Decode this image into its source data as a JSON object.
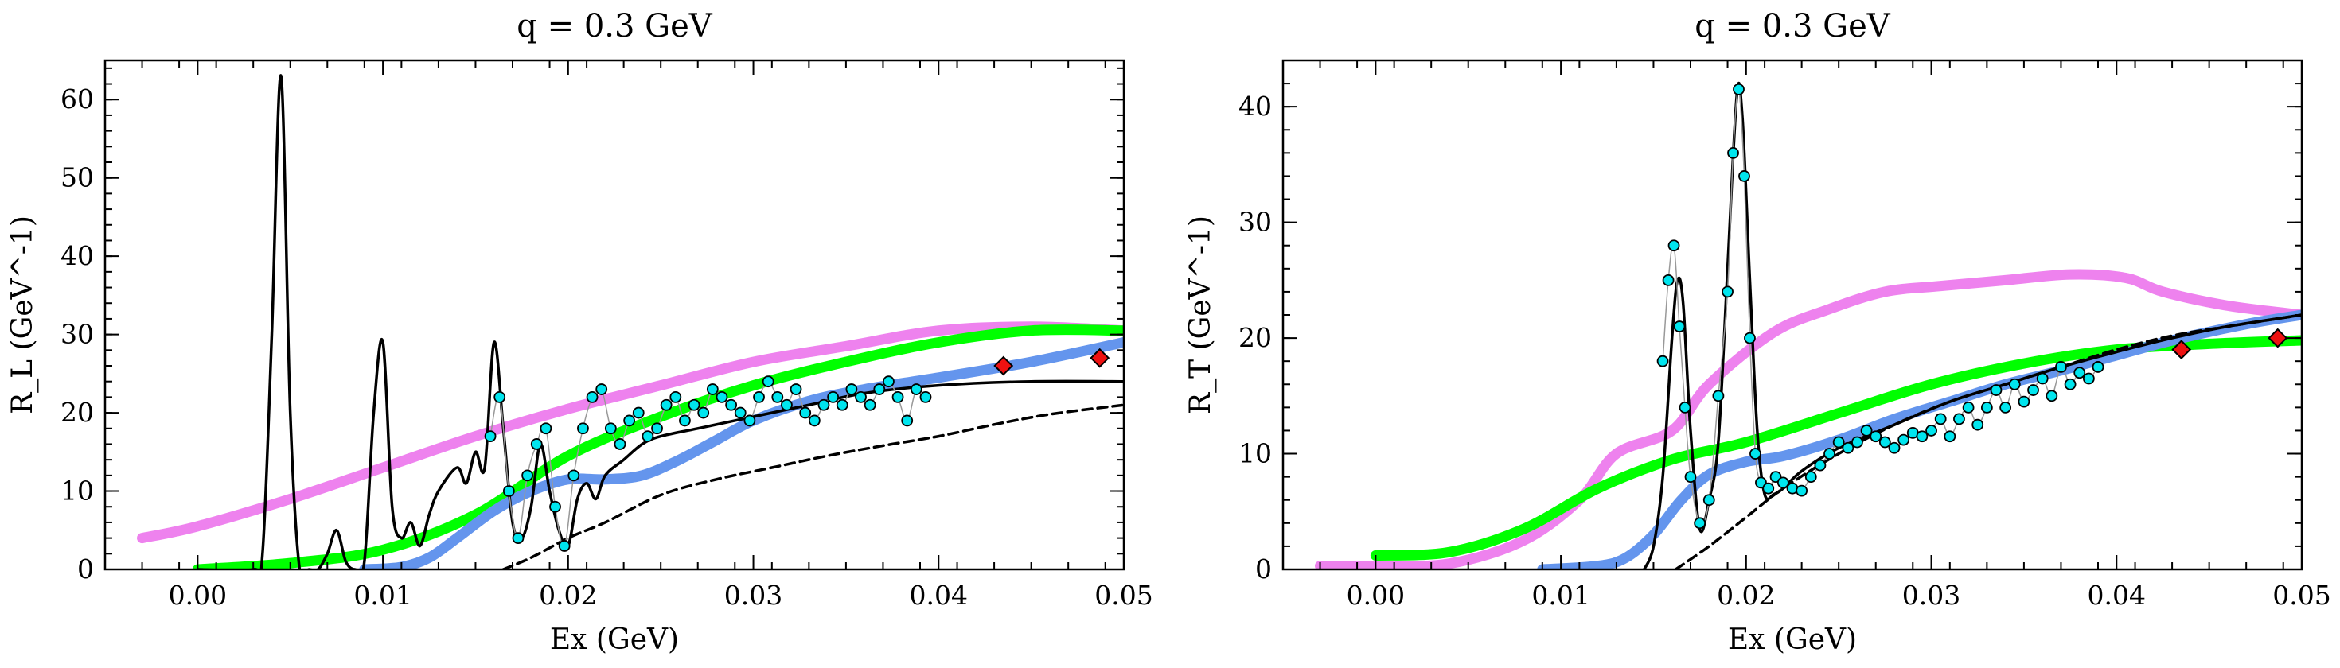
{
  "chart_data": [
    {
      "type": "line",
      "title": "q = 0.3 GeV",
      "xlabel": "Ex (GeV)",
      "ylabel": "R_L (GeV^-1)",
      "xlim": [
        -0.005,
        0.05
      ],
      "ylim": [
        0,
        65
      ],
      "xticks": [
        0.0,
        0.01,
        0.02,
        0.03,
        0.04,
        0.05
      ],
      "xtick_labels": [
        "0.00",
        "0.01",
        "0.02",
        "0.03",
        "0.04",
        "0.05"
      ],
      "yticks": [
        0,
        10,
        20,
        30,
        40,
        50,
        60
      ],
      "ytick_labels": [
        "0",
        "10",
        "20",
        "30",
        "40",
        "50",
        "60"
      ],
      "grid": false,
      "legend": "none",
      "series": [
        {
          "style": "thick",
          "color": "#ee82ee",
          "x": [
            -0.003,
            0.0,
            0.005,
            0.01,
            0.015,
            0.02,
            0.025,
            0.03,
            0.035,
            0.04,
            0.045,
            0.05
          ],
          "y": [
            4,
            5.5,
            9,
            13,
            17,
            20.5,
            23.5,
            26.5,
            28.5,
            30.5,
            31,
            30.5
          ]
        },
        {
          "style": "thick",
          "color": "#00ff00",
          "x": [
            0.0,
            0.005,
            0.01,
            0.015,
            0.02,
            0.025,
            0.03,
            0.035,
            0.04,
            0.045,
            0.05
          ],
          "y": [
            0,
            0.8,
            2.5,
            7,
            14.5,
            19.5,
            23.5,
            26.5,
            29,
            30.5,
            30.5
          ]
        },
        {
          "style": "thick",
          "color": "#6495ed",
          "x": [
            0.009,
            0.011,
            0.0125,
            0.014,
            0.016,
            0.018,
            0.02,
            0.022,
            0.024,
            0.026,
            0.028,
            0.03,
            0.033,
            0.036,
            0.04,
            0.045,
            0.05
          ],
          "y": [
            0,
            0.3,
            1.5,
            4,
            7.5,
            10,
            11.5,
            11.5,
            12,
            14,
            16.5,
            19,
            21.5,
            23,
            24.5,
            26.5,
            29
          ]
        },
        {
          "style": "thin",
          "color": "#000000",
          "x": [
            0.0,
            0.003,
            0.0035,
            0.004,
            0.0045,
            0.005,
            0.0055,
            0.006,
            0.0065,
            0.007,
            0.0075,
            0.008,
            0.0085,
            0.009,
            0.0095,
            0.01,
            0.0105,
            0.011,
            0.0115,
            0.012,
            0.0125,
            0.013,
            0.014,
            0.0145,
            0.015,
            0.0155,
            0.016,
            0.0165,
            0.017,
            0.0175,
            0.018,
            0.0185,
            0.019,
            0.0195,
            0.02,
            0.0205,
            0.021,
            0.0215,
            0.022,
            0.023,
            0.024,
            0.025,
            0.027,
            0.03,
            0.033,
            0.036,
            0.04,
            0.045,
            0.05
          ],
          "y": [
            0,
            0,
            2,
            30,
            63,
            20,
            0,
            0,
            0,
            2,
            5,
            1,
            0,
            1,
            20,
            29,
            8,
            4,
            6,
            3,
            7,
            10,
            13,
            11,
            15,
            13,
            29,
            18,
            6,
            4,
            8,
            16,
            10,
            5,
            3,
            9,
            11,
            9,
            12,
            14,
            16,
            17,
            18,
            19.5,
            21,
            22.5,
            23.5,
            24,
            24
          ]
        },
        {
          "style": "dashed",
          "color": "#000000",
          "x": [
            0.0165,
            0.018,
            0.02,
            0.022,
            0.025,
            0.028,
            0.031,
            0.034,
            0.037,
            0.04,
            0.043,
            0.046,
            0.05
          ],
          "y": [
            0,
            1.5,
            4,
            6,
            9.5,
            11.5,
            13,
            14.5,
            15.8,
            17,
            18.5,
            19.8,
            21
          ]
        },
        {
          "style": "markers",
          "color": "#00e5ee",
          "x": [
            0.0158,
            0.0163,
            0.0168,
            0.0173,
            0.0178,
            0.0183,
            0.0188,
            0.0193,
            0.0198,
            0.0203,
            0.0208,
            0.0213,
            0.0218,
            0.0223,
            0.0228,
            0.0233,
            0.0238,
            0.0243,
            0.0248,
            0.0253,
            0.0258,
            0.0263,
            0.0268,
            0.0273,
            0.0278,
            0.0283,
            0.0288,
            0.0293,
            0.0298,
            0.0303,
            0.0308,
            0.0313,
            0.0318,
            0.0323,
            0.0328,
            0.0333,
            0.0338,
            0.0343,
            0.0348,
            0.0353,
            0.0358,
            0.0363,
            0.0368,
            0.0373,
            0.0378,
            0.0383,
            0.0388,
            0.0393
          ],
          "y": [
            17,
            22,
            10,
            4,
            12,
            16,
            18,
            8,
            3,
            12,
            18,
            22,
            23,
            18,
            16,
            19,
            20,
            17,
            18,
            21,
            22,
            19,
            21,
            20,
            23,
            22,
            21,
            20,
            19,
            22,
            24,
            22,
            21,
            23,
            20,
            19,
            21,
            22,
            21,
            23,
            22,
            21,
            23,
            24,
            22,
            19,
            23,
            22
          ]
        },
        {
          "style": "diamond",
          "color": "#ee1111",
          "x": [
            0.0435,
            0.0487
          ],
          "y": [
            26,
            27
          ]
        }
      ]
    },
    {
      "type": "line",
      "title": "q = 0.3 GeV",
      "xlabel": "Ex (GeV)",
      "ylabel": "R_T (GeV^-1)",
      "xlim": [
        -0.005,
        0.05
      ],
      "ylim": [
        0,
        44
      ],
      "xticks": [
        0.0,
        0.01,
        0.02,
        0.03,
        0.04,
        0.05
      ],
      "xtick_labels": [
        "0.00",
        "0.01",
        "0.02",
        "0.03",
        "0.04",
        "0.05"
      ],
      "yticks": [
        0,
        10,
        20,
        30,
        40
      ],
      "ytick_labels": [
        "0",
        "10",
        "20",
        "30",
        "40"
      ],
      "grid": false,
      "legend": "none",
      "series": [
        {
          "style": "thick",
          "color": "#ee82ee",
          "x": [
            -0.003,
            0.0,
            0.004,
            0.008,
            0.011,
            0.013,
            0.016,
            0.018,
            0.0215,
            0.0245,
            0.0275,
            0.0305,
            0.034,
            0.0375,
            0.0405,
            0.0425,
            0.046,
            0.05
          ],
          "y": [
            0.3,
            0.3,
            0.5,
            2.5,
            6,
            10,
            12,
            16,
            20.5,
            22.5,
            24,
            24.5,
            25,
            25.5,
            25.2,
            24,
            22.8,
            22
          ]
        },
        {
          "style": "thick",
          "color": "#00ff00",
          "x": [
            0.0,
            0.004,
            0.008,
            0.012,
            0.016,
            0.02,
            0.025,
            0.03,
            0.035,
            0.04,
            0.045,
            0.05
          ],
          "y": [
            1.2,
            1.5,
            3.5,
            7,
            9.5,
            11,
            13.5,
            16,
            17.8,
            19,
            19.5,
            19.8
          ]
        },
        {
          "style": "thick",
          "color": "#6495ed",
          "x": [
            0.009,
            0.012,
            0.0135,
            0.015,
            0.0165,
            0.018,
            0.02,
            0.022,
            0.025,
            0.028,
            0.031,
            0.034,
            0.037,
            0.04,
            0.043,
            0.047,
            0.05
          ],
          "y": [
            0,
            0.3,
            1,
            3,
            6,
            8.2,
            9.3,
            9.8,
            11.2,
            13,
            14.5,
            16,
            17.2,
            18.5,
            19.8,
            21.2,
            22
          ]
        },
        {
          "style": "thin",
          "color": "#000000",
          "x": [
            0.0145,
            0.015,
            0.0155,
            0.016,
            0.0163,
            0.0166,
            0.017,
            0.0175,
            0.018,
            0.0185,
            0.019,
            0.0195,
            0.0198,
            0.0202,
            0.0206,
            0.021,
            0.0215,
            0.022,
            0.023,
            0.025,
            0.028,
            0.031,
            0.034,
            0.037,
            0.04,
            0.043,
            0.046,
            0.05
          ],
          "y": [
            0,
            2,
            8,
            20,
            25,
            23,
            12,
            3.5,
            6,
            11,
            26,
            41,
            39,
            25,
            12,
            6.5,
            6.5,
            7,
            8.5,
            10.5,
            12.5,
            14.5,
            16,
            17.5,
            18.8,
            20,
            21,
            22
          ]
        },
        {
          "style": "dashed",
          "color": "#000000",
          "x": [
            0.0162,
            0.018,
            0.02,
            0.022,
            0.025,
            0.028,
            0.031,
            0.034,
            0.037,
            0.04,
            0.043,
            0.046,
            0.05
          ],
          "y": [
            0,
            2,
            4.5,
            7,
            10,
            12.5,
            14.5,
            16,
            17.5,
            19,
            20.2,
            21,
            22
          ]
        },
        {
          "style": "markers",
          "color": "#00e5ee",
          "x": [
            0.0155,
            0.0158,
            0.0161,
            0.0164,
            0.0167,
            0.017,
            0.0175,
            0.018,
            0.0185,
            0.019,
            0.0193,
            0.0196,
            0.0199,
            0.0202,
            0.0205,
            0.0208,
            0.0212,
            0.0216,
            0.022,
            0.0225,
            0.023,
            0.0235,
            0.024,
            0.0245,
            0.025,
            0.0255,
            0.026,
            0.0265,
            0.027,
            0.0275,
            0.028,
            0.0285,
            0.029,
            0.0295,
            0.03,
            0.0305,
            0.031,
            0.0315,
            0.032,
            0.0325,
            0.033,
            0.0335,
            0.034,
            0.0345,
            0.035,
            0.0355,
            0.036,
            0.0365,
            0.037,
            0.0375,
            0.038,
            0.0385,
            0.039
          ],
          "y": [
            18,
            25,
            28,
            21,
            14,
            8,
            4,
            6,
            15,
            24,
            36,
            41.5,
            34,
            20,
            10,
            7.5,
            7,
            8,
            7.5,
            7,
            6.8,
            8,
            9,
            10,
            11,
            10.5,
            11,
            12,
            11.5,
            11,
            10.5,
            11.2,
            11.8,
            11.5,
            12,
            13,
            11.5,
            13,
            14,
            12.5,
            14,
            15.5,
            14,
            16,
            14.5,
            15.5,
            16.5,
            15,
            17.5,
            16,
            17,
            16.5,
            17.5
          ]
        },
        {
          "style": "diamond",
          "color": "#ee1111",
          "x": [
            0.0435,
            0.0487
          ],
          "y": [
            19,
            20
          ]
        }
      ]
    }
  ]
}
